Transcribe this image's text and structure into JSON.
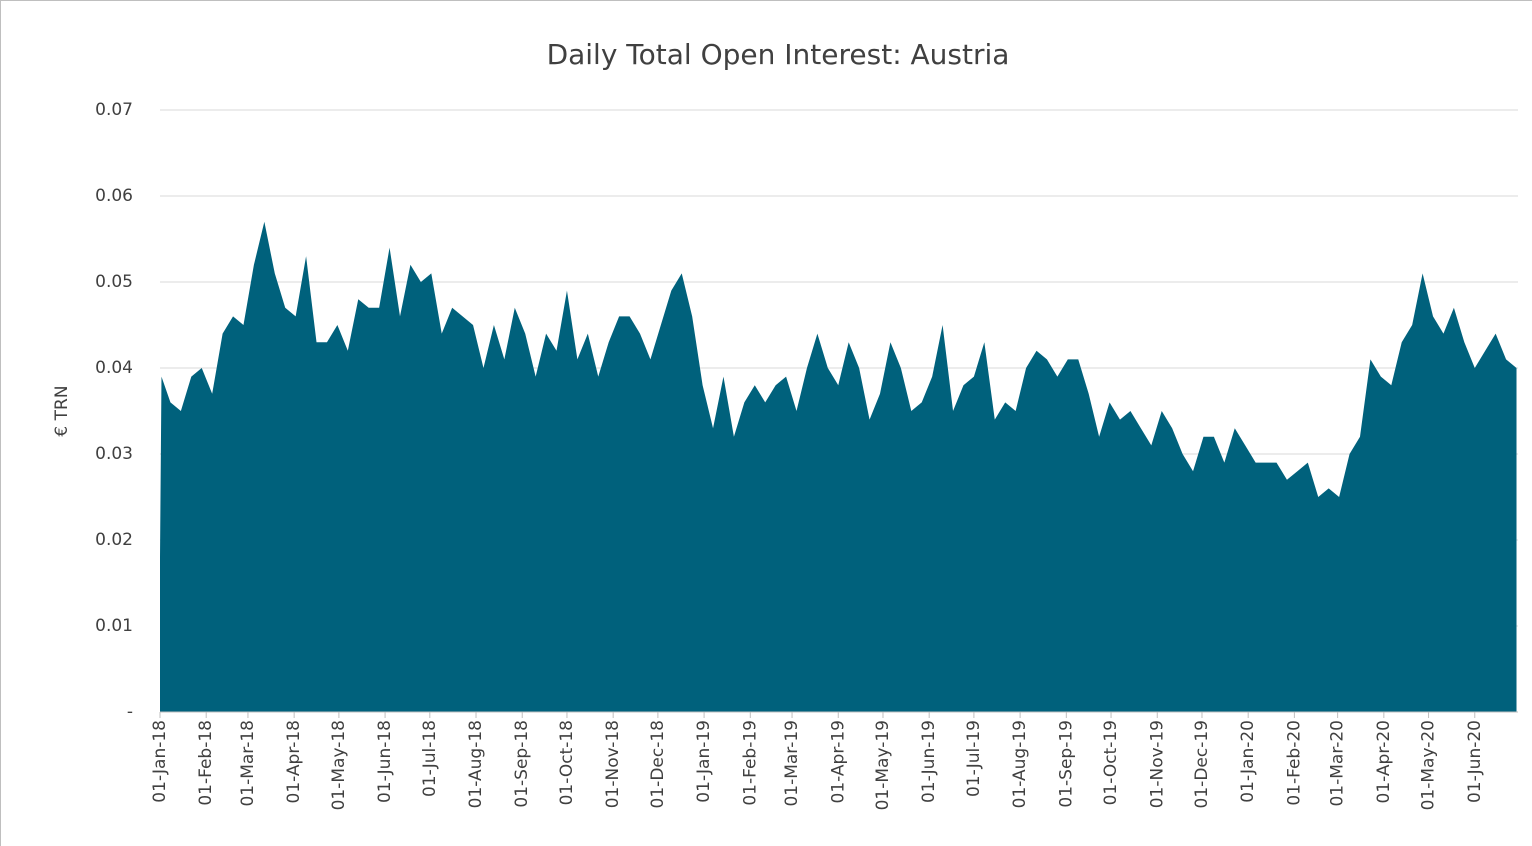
{
  "chart_data": {
    "type": "area",
    "title": "Daily Total Open Interest: Austria",
    "y_label": "€ TRN",
    "color": "#00617c",
    "grid": true,
    "xlim": [
      "2018-01-01",
      "2020-06-30"
    ],
    "xticks": [
      {
        "value": "2018-01-01",
        "label": "01-Jan-18"
      },
      {
        "value": "2018-02-01",
        "label": "01-Feb-18"
      },
      {
        "value": "2018-03-01",
        "label": "01-Mar-18"
      },
      {
        "value": "2018-04-01",
        "label": "01-Apr-18"
      },
      {
        "value": "2018-05-01",
        "label": "01-May-18"
      },
      {
        "value": "2018-06-01",
        "label": "01-Jun-18"
      },
      {
        "value": "2018-07-01",
        "label": "01-Jul-18"
      },
      {
        "value": "2018-08-01",
        "label": "01-Aug-18"
      },
      {
        "value": "2018-09-01",
        "label": "01-Sep-18"
      },
      {
        "value": "2018-10-01",
        "label": "01-Oct-18"
      },
      {
        "value": "2018-11-01",
        "label": "01-Nov-18"
      },
      {
        "value": "2018-12-01",
        "label": "01-Dec-18"
      },
      {
        "value": "2019-01-01",
        "label": "01-Jan-19"
      },
      {
        "value": "2019-02-01",
        "label": "01-Feb-19"
      },
      {
        "value": "2019-03-01",
        "label": "01-Mar-19"
      },
      {
        "value": "2019-04-01",
        "label": "01-Apr-19"
      },
      {
        "value": "2019-05-01",
        "label": "01-May-19"
      },
      {
        "value": "2019-06-01",
        "label": "01-Jun-19"
      },
      {
        "value": "2019-07-01",
        "label": "01-Jul-19"
      },
      {
        "value": "2019-08-01",
        "label": "01-Aug-19"
      },
      {
        "value": "2019-09-01",
        "label": "01-Sep-19"
      },
      {
        "value": "2019-10-01",
        "label": "01-Oct-19"
      },
      {
        "value": "2019-11-01",
        "label": "01-Nov-19"
      },
      {
        "value": "2019-12-01",
        "label": "01-Dec-19"
      },
      {
        "value": "2020-01-01",
        "label": "01-Jan-20"
      },
      {
        "value": "2020-02-01",
        "label": "01-Feb-20"
      },
      {
        "value": "2020-03-01",
        "label": "01-Mar-20"
      },
      {
        "value": "2020-04-01",
        "label": "01-Apr-20"
      },
      {
        "value": "2020-05-01",
        "label": "01-May-20"
      },
      {
        "value": "2020-06-01",
        "label": "01-Jun-20"
      }
    ],
    "ylim": [
      0,
      0.07
    ],
    "yticks": [
      {
        "value": 0,
        "label": "-"
      },
      0.01,
      0.02,
      0.03,
      0.04,
      0.05,
      0.06,
      0.07
    ],
    "x": [
      "2018-01-01",
      "2018-01-02",
      "2018-01-08",
      "2018-01-15",
      "2018-01-22",
      "2018-01-29",
      "2018-02-05",
      "2018-02-12",
      "2018-02-19",
      "2018-02-26",
      "2018-03-05",
      "2018-03-12",
      "2018-03-19",
      "2018-03-26",
      "2018-04-02",
      "2018-04-09",
      "2018-04-16",
      "2018-04-23",
      "2018-04-30",
      "2018-05-07",
      "2018-05-14",
      "2018-05-21",
      "2018-05-28",
      "2018-06-04",
      "2018-06-11",
      "2018-06-18",
      "2018-06-25",
      "2018-07-02",
      "2018-07-09",
      "2018-07-16",
      "2018-07-23",
      "2018-07-30",
      "2018-08-06",
      "2018-08-13",
      "2018-08-20",
      "2018-08-27",
      "2018-09-03",
      "2018-09-10",
      "2018-09-17",
      "2018-09-24",
      "2018-10-01",
      "2018-10-08",
      "2018-10-15",
      "2018-10-22",
      "2018-10-29",
      "2018-11-05",
      "2018-11-12",
      "2018-11-19",
      "2018-11-26",
      "2018-12-03",
      "2018-12-10",
      "2018-12-17",
      "2018-12-24",
      "2018-12-31",
      "2019-01-07",
      "2019-01-14",
      "2019-01-21",
      "2019-01-28",
      "2019-02-04",
      "2019-02-11",
      "2019-02-18",
      "2019-02-25",
      "2019-03-04",
      "2019-03-11",
      "2019-03-18",
      "2019-03-25",
      "2019-04-01",
      "2019-04-08",
      "2019-04-15",
      "2019-04-22",
      "2019-04-29",
      "2019-05-06",
      "2019-05-13",
      "2019-05-20",
      "2019-05-27",
      "2019-06-03",
      "2019-06-10",
      "2019-06-17",
      "2019-06-24",
      "2019-07-01",
      "2019-07-08",
      "2019-07-15",
      "2019-07-22",
      "2019-07-29",
      "2019-08-05",
      "2019-08-12",
      "2019-08-19",
      "2019-08-26",
      "2019-09-02",
      "2019-09-09",
      "2019-09-16",
      "2019-09-23",
      "2019-09-30",
      "2019-10-07",
      "2019-10-14",
      "2019-10-21",
      "2019-10-28",
      "2019-11-04",
      "2019-11-11",
      "2019-11-18",
      "2019-11-25",
      "2019-12-02",
      "2019-12-09",
      "2019-12-16",
      "2019-12-23",
      "2019-12-30",
      "2020-01-06",
      "2020-01-13",
      "2020-01-20",
      "2020-01-27",
      "2020-02-03",
      "2020-02-10",
      "2020-02-17",
      "2020-02-24",
      "2020-03-02",
      "2020-03-09",
      "2020-03-16",
      "2020-03-23",
      "2020-03-30",
      "2020-04-06",
      "2020-04-13",
      "2020-04-20",
      "2020-04-27",
      "2020-05-04",
      "2020-05-11",
      "2020-05-18",
      "2020-05-25",
      "2020-06-01",
      "2020-06-08",
      "2020-06-15",
      "2020-06-22",
      "2020-06-29"
    ],
    "values": [
      0.018,
      0.039,
      0.036,
      0.035,
      0.039,
      0.04,
      0.037,
      0.044,
      0.046,
      0.045,
      0.052,
      0.057,
      0.051,
      0.047,
      0.046,
      0.053,
      0.043,
      0.043,
      0.045,
      0.042,
      0.048,
      0.047,
      0.047,
      0.054,
      0.046,
      0.052,
      0.05,
      0.051,
      0.044,
      0.047,
      0.046,
      0.045,
      0.04,
      0.045,
      0.041,
      0.047,
      0.044,
      0.039,
      0.044,
      0.042,
      0.049,
      0.041,
      0.044,
      0.039,
      0.043,
      0.046,
      0.046,
      0.044,
      0.041,
      0.045,
      0.049,
      0.051,
      0.046,
      0.038,
      0.033,
      0.039,
      0.032,
      0.036,
      0.038,
      0.036,
      0.038,
      0.039,
      0.035,
      0.04,
      0.044,
      0.04,
      0.038,
      0.043,
      0.04,
      0.034,
      0.037,
      0.043,
      0.04,
      0.035,
      0.036,
      0.039,
      0.045,
      0.035,
      0.038,
      0.039,
      0.043,
      0.034,
      0.036,
      0.035,
      0.04,
      0.042,
      0.041,
      0.039,
      0.041,
      0.041,
      0.037,
      0.032,
      0.036,
      0.034,
      0.035,
      0.033,
      0.031,
      0.035,
      0.033,
      0.03,
      0.028,
      0.032,
      0.032,
      0.029,
      0.033,
      0.031,
      0.029,
      0.029,
      0.029,
      0.027,
      0.028,
      0.029,
      0.025,
      0.026,
      0.025,
      0.03,
      0.032,
      0.041,
      0.039,
      0.038,
      0.043,
      0.045,
      0.051,
      0.046,
      0.044,
      0.047,
      0.043,
      0.04,
      0.042,
      0.044,
      0.041,
      0.04
    ]
  }
}
